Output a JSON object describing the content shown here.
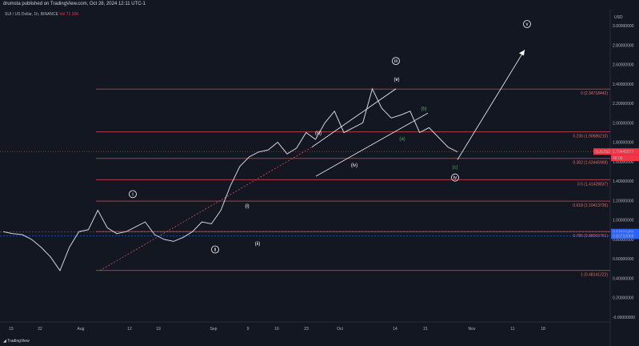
{
  "header": {
    "published": "drumsta published on TradingView.com, Oct 28, 2024 12:11 UTC-1"
  },
  "symbol": {
    "line": "SUI / US Dollar, 1h, BINANCE",
    "volume": "Vol 71.16K"
  },
  "footer": {
    "brand": "TradingView"
  },
  "chart_data": {
    "type": "line",
    "currency": "USD",
    "y_axis_ticks": [
      "3.00000000",
      "2.80000000",
      "2.60000000",
      "2.40000000",
      "2.20000000",
      "2.00000000",
      "1.80000000",
      "1.60000000",
      "1.40000000",
      "1.20000000",
      "1.00000000",
      "0.80000000",
      "0.60000000",
      "0.40000000",
      "0.20000000",
      "-0.00000000"
    ],
    "x_axis_ticks": [
      "15",
      "22",
      "Aug",
      "12",
      "19",
      "Sep",
      "9",
      "16",
      "23",
      "Oct",
      "14",
      "21",
      "Nov",
      "11",
      "18"
    ],
    "ylim": [
      0,
      3.1
    ],
    "current_price": {
      "label": "SUIUSD",
      "value": "1.70445877",
      "countdown": "48:08",
      "color": "#f23645"
    },
    "price_tags": [
      {
        "value": "0.87632493",
        "color": "#2962ff"
      },
      {
        "value": "0.83710069",
        "color": "#2962ff"
      }
    ],
    "fib_levels": [
      {
        "label": "0 (2.34718442)",
        "price": 2.34718442
      },
      {
        "label": "0.236 (1.90686210)",
        "price": 1.9068621
      },
      {
        "label": "0.382 (1.63445968)",
        "price": 1.63445968
      },
      {
        "label": "0.5 (1.41428837)",
        "price": 1.41428837
      },
      {
        "label": "0.618 (1.19413726)",
        "price": 1.19413726
      },
      {
        "label": "0.786 (0.88066751)",
        "price": 0.88066751
      },
      {
        "label": "1 (0.48141222)",
        "price": 0.48141222
      }
    ],
    "wave_labels": [
      "i",
      "ii",
      "iii",
      "iv",
      "v",
      "(i)",
      "(ii)",
      "(iii)",
      "(iv)",
      "(v)",
      "(a)",
      "(b)",
      "(c)"
    ],
    "series": [
      {
        "values": [
          0.88,
          0.86,
          0.85,
          0.8,
          0.72,
          0.62,
          0.48,
          0.72,
          0.88,
          0.9,
          1.1,
          0.92,
          0.86,
          0.88,
          0.93,
          0.98,
          0.85,
          0.8,
          0.78,
          0.82,
          0.88,
          0.98,
          0.96,
          1.1,
          1.35,
          1.55,
          1.65,
          1.7,
          1.72,
          1.8,
          1.68,
          1.74,
          1.9,
          1.83,
          2.0,
          2.12,
          1.9,
          1.95,
          2.0,
          2.35,
          2.15,
          2.05,
          2.08,
          2.12,
          1.9,
          1.95,
          1.85,
          1.75,
          1.7
        ]
      }
    ],
    "colors": {
      "fib": "#b23a48",
      "line": "#d1d4dc",
      "background": "#131722"
    }
  }
}
